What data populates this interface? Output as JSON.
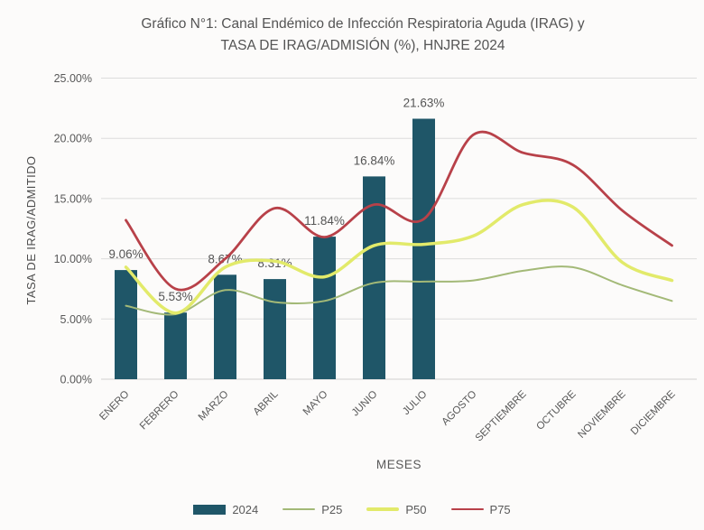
{
  "chart_data": {
    "type": "bar",
    "combo_with_lines": true,
    "title": "Gráfico N°1: Canal Endémico de Infección Respiratoria Aguda (IRAG) y TASA DE IRAG/ADMISIÓN (%), HNJRE 2024",
    "title_line1": "Gráfico N°1: Canal Endémico de Infección Respiratoria Aguda (IRAG) y",
    "title_line2": "TASA DE IRAG/ADMISIÓN (%), HNJRE 2024",
    "xlabel": "MESES",
    "ylabel": "TASA DE IRAG/ADMITIDO",
    "ylim": [
      0,
      25
    ],
    "y_tick_labels": [
      "0.00%",
      "5.00%",
      "10.00%",
      "15.00%",
      "20.00%",
      "25.00%"
    ],
    "grid": "horizontal",
    "legend_position": "bottom",
    "categories": [
      "ENERO",
      "FEBRERO",
      "MARZO",
      "ABRIL",
      "MAYO",
      "JUNIO",
      "JULIO",
      "AGOSTO",
      "SEPTIEMBRE",
      "OCTUBRE",
      "NOVIEMBRE",
      "DICIEMBRE"
    ],
    "series": [
      {
        "name": "2024",
        "kind": "bar",
        "color": "#1f5668",
        "values": [
          9.06,
          5.53,
          8.67,
          8.31,
          11.84,
          16.84,
          21.63,
          null,
          null,
          null,
          null,
          null
        ],
        "data_labels": [
          "9.06%",
          "5.53%",
          "8.67%",
          "8.31%",
          "11.84%",
          "16.84%",
          "21.63%",
          null,
          null,
          null,
          null,
          null
        ]
      },
      {
        "name": "P25",
        "kind": "line",
        "color": "#a3b977",
        "stroke_width": 2,
        "values": [
          6.1,
          5.4,
          7.4,
          6.4,
          6.5,
          8.0,
          8.1,
          8.2,
          9.0,
          9.3,
          7.8,
          6.5
        ]
      },
      {
        "name": "P50",
        "kind": "line",
        "color": "#e2ea6a",
        "stroke_width": 3.5,
        "values": [
          9.3,
          5.5,
          9.3,
          9.8,
          8.5,
          11.1,
          11.2,
          11.9,
          14.5,
          14.3,
          9.7,
          8.2
        ]
      },
      {
        "name": "P75",
        "kind": "line",
        "color": "#b84149",
        "stroke_width": 2.8,
        "values": [
          13.2,
          7.5,
          10.0,
          14.2,
          11.8,
          14.5,
          13.3,
          20.3,
          18.8,
          17.8,
          14.0,
          11.1
        ]
      }
    ]
  },
  "colors": {
    "background": "#fcfbfa",
    "grid": "#dcdcdc",
    "baseline": "#cfcfcf",
    "text": "#595959"
  }
}
